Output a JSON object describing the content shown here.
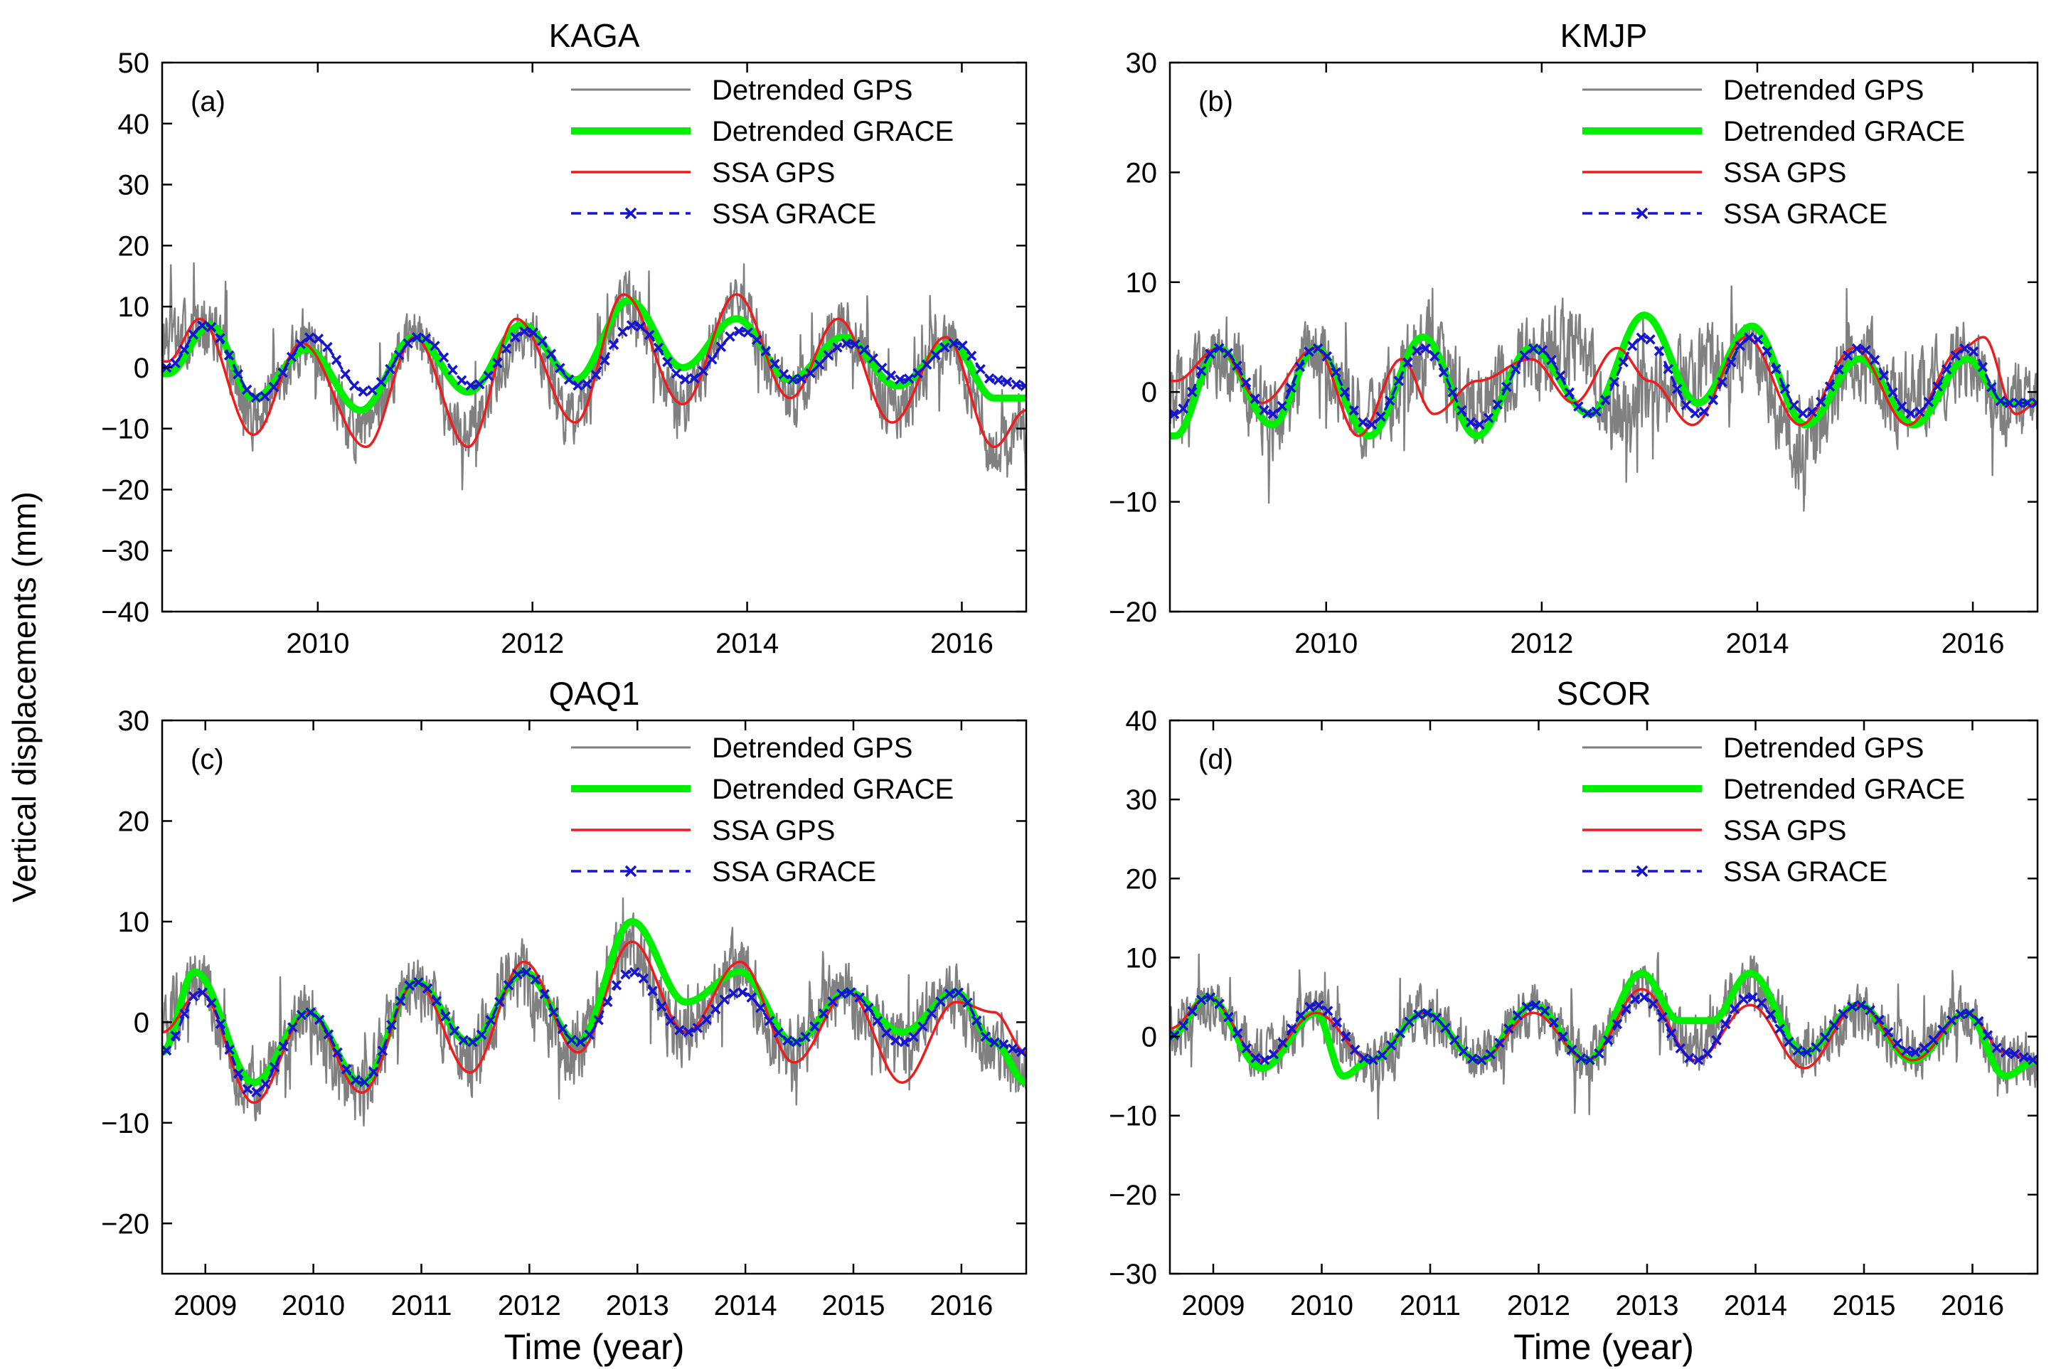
{
  "figure": {
    "ylabel": "Vertical displacements (mm)",
    "xlabel": "Time (year)"
  },
  "colors": {
    "gps": "#808080",
    "grace": "#00ee00",
    "ssa_gps": "#ee1c1c",
    "ssa_grace": "#1414d2",
    "axis": "#000000",
    "background": "#ffffff"
  },
  "legend": {
    "entries": [
      "Detrended GPS",
      "Detrended GRACE",
      "SSA GPS",
      "SSA GRACE"
    ],
    "placement": "top-right"
  },
  "chart_data": [
    {
      "id": "a",
      "type": "line",
      "title": "KAGA",
      "panel_label": "(a)",
      "xlim": [
        2008.55,
        2016.6
      ],
      "ylim": [
        -40,
        50
      ],
      "yticks": [
        -40,
        -30,
        -20,
        -10,
        0,
        10,
        20,
        30,
        40,
        50
      ],
      "xticks": [
        2010,
        2012,
        2014,
        2016
      ],
      "xlabel": "",
      "series": [
        {
          "name": "Detrended GPS",
          "noise": 6.5,
          "scale": 0.9,
          "x": [
            2008.6,
            2009.0,
            2009.4,
            2009.9,
            2010.4,
            2010.9,
            2011.4,
            2011.9,
            2012.4,
            2012.9,
            2013.4,
            2013.9,
            2014.4,
            2014.9,
            2015.4,
            2015.9,
            2016.3,
            2016.6
          ],
          "y": [
            5,
            7,
            -9,
            4,
            -12,
            5,
            -12,
            7,
            -9,
            12,
            -7,
            11,
            -5,
            7,
            -8,
            4,
            -15,
            -10
          ]
        },
        {
          "name": "Detrended GRACE",
          "x": [
            2008.6,
            2009.0,
            2009.4,
            2009.9,
            2010.4,
            2010.9,
            2011.4,
            2011.9,
            2012.4,
            2012.9,
            2013.4,
            2013.9,
            2014.4,
            2014.9,
            2015.4,
            2015.9,
            2016.3,
            2016.6
          ],
          "y": [
            -1,
            7,
            -5,
            3,
            -7,
            5,
            -4,
            7,
            -2,
            11,
            0,
            8,
            -2,
            5,
            -3,
            4,
            -5,
            -5
          ]
        },
        {
          "name": "SSA GPS",
          "x": [
            2008.6,
            2008.9,
            2009.4,
            2009.85,
            2010.45,
            2010.9,
            2011.4,
            2011.85,
            2012.4,
            2012.85,
            2013.4,
            2013.9,
            2014.4,
            2014.85,
            2015.35,
            2015.85,
            2016.3,
            2016.6
          ],
          "y": [
            1,
            8,
            -11,
            4,
            -13,
            5,
            -13,
            8,
            -9,
            12,
            -6,
            12,
            -5,
            8,
            -9,
            5,
            -13,
            -7
          ]
        },
        {
          "name": "SSA GRACE",
          "x": [
            2008.6,
            2008.95,
            2009.45,
            2009.95,
            2010.45,
            2010.95,
            2011.45,
            2011.95,
            2012.45,
            2012.95,
            2013.45,
            2013.95,
            2014.45,
            2014.95,
            2015.45,
            2015.95,
            2016.3,
            2016.6
          ],
          "y": [
            0,
            7,
            -5,
            5,
            -4,
            5,
            -3,
            6,
            -3,
            7,
            -2,
            6,
            -2,
            4,
            -2,
            4,
            -2,
            -3
          ]
        }
      ]
    },
    {
      "id": "b",
      "type": "line",
      "title": "KMJP",
      "panel_label": "(b)",
      "xlim": [
        2008.55,
        2016.6
      ],
      "ylim": [
        -20,
        30
      ],
      "yticks": [
        -20,
        -10,
        0,
        10,
        20,
        30
      ],
      "xticks": [
        2010,
        2012,
        2014,
        2016
      ],
      "xlabel": "",
      "series": [
        {
          "name": "Detrended GPS",
          "noise": 5,
          "scale": 0.9,
          "x": [
            2008.6,
            2009.0,
            2009.5,
            2009.9,
            2010.4,
            2010.9,
            2011.4,
            2011.9,
            2012.3,
            2012.7,
            2013.2,
            2013.6,
            2013.9,
            2014.4,
            2014.9,
            2015.4,
            2015.9,
            2016.3,
            2016.6
          ],
          "y": [
            0,
            4,
            -3,
            4,
            -3,
            4,
            -2,
            3,
            5,
            -2,
            1,
            3,
            4,
            -6,
            3,
            -1,
            3,
            -1,
            -2
          ]
        },
        {
          "name": "Detrended GRACE",
          "x": [
            2008.6,
            2009.0,
            2009.5,
            2009.9,
            2010.4,
            2010.9,
            2011.4,
            2011.9,
            2012.45,
            2012.95,
            2013.45,
            2013.95,
            2014.45,
            2014.95,
            2015.45,
            2015.95,
            2016.3,
            2016.6
          ],
          "y": [
            -4,
            4,
            -3,
            4,
            -4,
            5,
            -4,
            4,
            -2,
            7,
            -1,
            6,
            -3,
            3,
            -3,
            3,
            -1,
            -1
          ]
        },
        {
          "name": "SSA GPS",
          "x": [
            2008.6,
            2009.0,
            2009.4,
            2009.9,
            2010.3,
            2010.7,
            2011.0,
            2011.4,
            2011.9,
            2012.3,
            2012.7,
            2013.0,
            2013.4,
            2013.9,
            2014.4,
            2014.9,
            2015.4,
            2015.9,
            2016.1,
            2016.4,
            2016.6
          ],
          "y": [
            1,
            4,
            -1,
            4,
            -4,
            3,
            -2,
            1,
            3,
            -1,
            4,
            1,
            -3,
            5,
            -3,
            4,
            -3,
            4,
            5,
            -2,
            -1
          ]
        },
        {
          "name": "SSA GRACE",
          "x": [
            2008.6,
            2009.0,
            2009.5,
            2009.9,
            2010.4,
            2010.9,
            2011.4,
            2011.95,
            2012.45,
            2012.95,
            2013.45,
            2013.95,
            2014.45,
            2014.95,
            2015.45,
            2015.95,
            2016.3,
            2016.6
          ],
          "y": [
            -2,
            4,
            -2,
            4,
            -3,
            4,
            -3,
            4,
            -2,
            5,
            -2,
            5,
            -2,
            4,
            -2,
            4,
            -1,
            -1
          ]
        }
      ]
    },
    {
      "id": "c",
      "type": "line",
      "title": "QAQ1",
      "panel_label": "(c)",
      "xlim": [
        2008.6,
        2016.6
      ],
      "ylim": [
        -25,
        30
      ],
      "yticks": [
        -20,
        -10,
        0,
        10,
        20,
        30
      ],
      "xticks": [
        2009,
        2010,
        2011,
        2012,
        2013,
        2014,
        2015,
        2016
      ],
      "xlabel": "Time (year)",
      "series": [
        {
          "name": "Detrended GPS",
          "noise": 4.5,
          "scale": 0.9,
          "x": [
            2008.6,
            2008.9,
            2009.4,
            2009.9,
            2010.4,
            2010.9,
            2011.4,
            2011.9,
            2012.4,
            2012.9,
            2013.4,
            2013.9,
            2014.4,
            2014.9,
            2015.4,
            2015.9,
            2016.3,
            2016.6
          ],
          "y": [
            0,
            5,
            -7,
            0,
            -8,
            4,
            -4,
            5,
            -3,
            8,
            -1,
            6,
            -3,
            3,
            -3,
            3,
            -3,
            -5
          ]
        },
        {
          "name": "Detrended GRACE",
          "x": [
            2008.6,
            2008.9,
            2009.45,
            2009.95,
            2010.45,
            2010.95,
            2011.45,
            2011.95,
            2012.45,
            2012.95,
            2013.45,
            2013.95,
            2014.45,
            2014.95,
            2015.45,
            2015.95,
            2016.3,
            2016.6
          ],
          "y": [
            -3,
            5,
            -6,
            1,
            -6,
            4,
            -2,
            5,
            -2,
            10,
            2,
            5,
            -2,
            3,
            -1,
            3,
            -2,
            -6
          ]
        },
        {
          "name": "SSA GPS",
          "x": [
            2008.6,
            2008.95,
            2009.45,
            2009.95,
            2010.45,
            2010.95,
            2011.45,
            2011.95,
            2012.45,
            2012.95,
            2013.45,
            2013.95,
            2014.45,
            2014.95,
            2015.45,
            2015.95,
            2016.3,
            2016.6
          ],
          "y": [
            -1,
            3,
            -8,
            1,
            -7,
            4,
            -5,
            6,
            -3,
            8,
            -1,
            6,
            -4,
            3,
            -6,
            2,
            1,
            -3
          ]
        },
        {
          "name": "SSA GRACE",
          "x": [
            2008.6,
            2008.95,
            2009.45,
            2009.95,
            2010.45,
            2010.95,
            2011.45,
            2011.95,
            2012.45,
            2012.95,
            2013.45,
            2013.95,
            2014.45,
            2014.95,
            2015.45,
            2015.95,
            2016.3,
            2016.6
          ],
          "y": [
            -3,
            3,
            -7,
            1,
            -6,
            4,
            -2,
            5,
            -2,
            5,
            -1,
            3,
            -2,
            3,
            -2,
            3,
            -2,
            -3
          ]
        }
      ]
    },
    {
      "id": "d",
      "type": "line",
      "title": "SCOR",
      "panel_label": "(d)",
      "xlim": [
        2008.6,
        2016.6
      ],
      "ylim": [
        -30,
        40
      ],
      "yticks": [
        -30,
        -20,
        -10,
        0,
        10,
        20,
        30,
        40
      ],
      "xticks": [
        2009,
        2010,
        2011,
        2012,
        2013,
        2014,
        2015,
        2016
      ],
      "xlabel": "Time (year)",
      "series": [
        {
          "name": "Detrended GPS",
          "noise": 4.5,
          "scale": 0.9,
          "x": [
            2008.6,
            2008.95,
            2009.45,
            2009.95,
            2010.45,
            2010.95,
            2011.45,
            2011.95,
            2012.45,
            2012.95,
            2013.45,
            2013.95,
            2014.45,
            2014.95,
            2015.45,
            2015.95,
            2016.3,
            2016.6
          ],
          "y": [
            0,
            5,
            -3,
            3,
            -4,
            3,
            -3,
            4,
            -3,
            7,
            -2,
            8,
            -2,
            3,
            -3,
            3,
            -4,
            -3
          ]
        },
        {
          "name": "Detrended GRACE",
          "x": [
            2008.6,
            2008.95,
            2009.45,
            2009.95,
            2010.2,
            2010.45,
            2010.95,
            2011.45,
            2011.95,
            2012.45,
            2012.95,
            2013.3,
            2013.6,
            2013.95,
            2014.45,
            2014.95,
            2015.45,
            2015.95,
            2016.3,
            2016.6
          ],
          "y": [
            0,
            5,
            -4,
            3,
            -5,
            -3,
            3,
            -3,
            4,
            -3,
            8,
            2,
            2,
            8,
            -2,
            4,
            -3,
            3,
            -5,
            -3
          ]
        },
        {
          "name": "SSA GPS",
          "x": [
            2008.6,
            2008.95,
            2009.45,
            2009.95,
            2010.45,
            2010.95,
            2011.45,
            2011.95,
            2012.45,
            2012.95,
            2013.45,
            2013.95,
            2014.45,
            2014.95,
            2015.45,
            2015.95,
            2016.3,
            2016.6
          ],
          "y": [
            1,
            5,
            -3,
            3,
            -3,
            3,
            -3,
            3,
            -3,
            6,
            -3,
            4,
            -4,
            4,
            -3,
            3,
            -2,
            -3
          ]
        },
        {
          "name": "SSA GRACE",
          "x": [
            2008.6,
            2008.95,
            2009.45,
            2009.95,
            2010.45,
            2010.95,
            2011.45,
            2011.95,
            2012.45,
            2012.95,
            2013.45,
            2013.95,
            2014.45,
            2014.95,
            2015.45,
            2015.95,
            2016.3,
            2016.6
          ],
          "y": [
            0,
            5,
            -3,
            4,
            -3,
            3,
            -3,
            4,
            -3,
            5,
            -3,
            5,
            -2,
            4,
            -2,
            3,
            -2,
            -3
          ]
        }
      ]
    }
  ]
}
